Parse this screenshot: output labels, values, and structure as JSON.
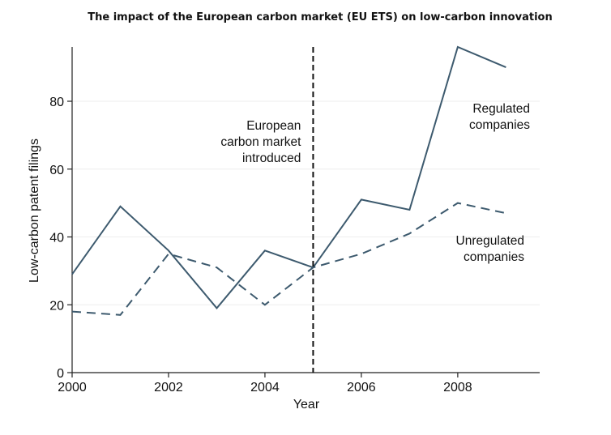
{
  "chart_data": {
    "type": "line",
    "title": "The impact of the European carbon market (EU ETS) on low-carbon innovation",
    "xlabel": "Year",
    "ylabel": "Low-carbon patent filings",
    "x": [
      2000,
      2001,
      2002,
      2003,
      2004,
      2005,
      2006,
      2007,
      2008,
      2009
    ],
    "xlim": [
      2000,
      2009.7
    ],
    "ylim": [
      0,
      96
    ],
    "x_ticks": [
      2000,
      2002,
      2004,
      2006,
      2008
    ],
    "y_ticks": [
      0,
      20,
      40,
      60,
      80
    ],
    "grid": "horizontal",
    "series": [
      {
        "name": "Regulated companies",
        "style": "solid",
        "color": "#3d5a6e",
        "values": [
          29,
          49,
          36,
          19,
          36,
          31,
          51,
          48,
          96,
          90
        ]
      },
      {
        "name": "Unregulated companies",
        "style": "dashed",
        "color": "#3d5a6e",
        "values": [
          18,
          17,
          35,
          31,
          20,
          31,
          35,
          41,
          50,
          47
        ]
      }
    ],
    "annotations": [
      {
        "type": "vertical-line",
        "x": 2005,
        "style": "dashed",
        "color": "#111111",
        "lines": [
          "European",
          "carbon market",
          "introduced"
        ]
      }
    ],
    "series_labels": [
      {
        "series": 0,
        "lines": [
          "Regulated",
          "companies"
        ]
      },
      {
        "series": 1,
        "lines": [
          "Unregulated",
          "companies"
        ]
      }
    ]
  }
}
